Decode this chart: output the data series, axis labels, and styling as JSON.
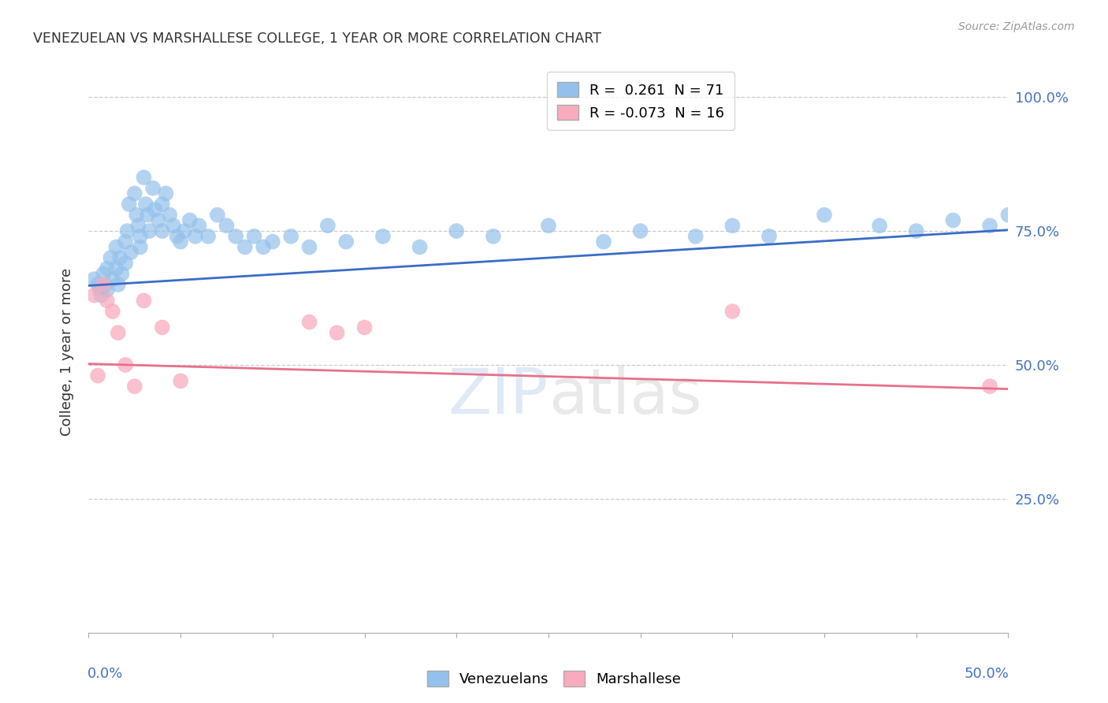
{
  "title": "VENEZUELAN VS MARSHALLESE COLLEGE, 1 YEAR OR MORE CORRELATION CHART",
  "source": "Source: ZipAtlas.com",
  "ylabel": "College, 1 year or more",
  "xlim": [
    0.0,
    0.5
  ],
  "ylim": [
    0.0,
    1.05
  ],
  "blue_color": "#94C1EC",
  "pink_color": "#F9ABBE",
  "blue_line_color": "#3B6CC5",
  "pink_line_color": "#E8708A",
  "grid_color": "#cccccc",
  "right_tick_color": "#4472C4",
  "venezuelan_x": [
    0.003,
    0.005,
    0.006,
    0.007,
    0.008,
    0.009,
    0.01,
    0.01,
    0.012,
    0.013,
    0.015,
    0.015,
    0.016,
    0.017,
    0.018,
    0.02,
    0.02,
    0.021,
    0.022,
    0.023,
    0.025,
    0.026,
    0.027,
    0.028,
    0.028,
    0.03,
    0.031,
    0.032,
    0.033,
    0.035,
    0.036,
    0.038,
    0.04,
    0.04,
    0.042,
    0.044,
    0.046,
    0.048,
    0.05,
    0.052,
    0.055,
    0.058,
    0.06,
    0.065,
    0.07,
    0.075,
    0.08,
    0.085,
    0.09,
    0.095,
    0.1,
    0.11,
    0.12,
    0.13,
    0.14,
    0.16,
    0.18,
    0.2,
    0.22,
    0.25,
    0.28,
    0.3,
    0.33,
    0.35,
    0.37,
    0.4,
    0.43,
    0.45,
    0.47,
    0.49,
    0.5
  ],
  "venezuelan_y": [
    0.66,
    0.65,
    0.64,
    0.63,
    0.67,
    0.65,
    0.68,
    0.64,
    0.7,
    0.66,
    0.72,
    0.68,
    0.65,
    0.7,
    0.67,
    0.73,
    0.69,
    0.75,
    0.8,
    0.71,
    0.82,
    0.78,
    0.76,
    0.74,
    0.72,
    0.85,
    0.8,
    0.78,
    0.75,
    0.83,
    0.79,
    0.77,
    0.8,
    0.75,
    0.82,
    0.78,
    0.76,
    0.74,
    0.73,
    0.75,
    0.77,
    0.74,
    0.76,
    0.74,
    0.78,
    0.76,
    0.74,
    0.72,
    0.74,
    0.72,
    0.73,
    0.74,
    0.72,
    0.76,
    0.73,
    0.74,
    0.72,
    0.75,
    0.74,
    0.76,
    0.73,
    0.75,
    0.74,
    0.76,
    0.74,
    0.78,
    0.76,
    0.75,
    0.77,
    0.76,
    0.78
  ],
  "marshallese_x": [
    0.003,
    0.005,
    0.008,
    0.01,
    0.013,
    0.016,
    0.02,
    0.025,
    0.03,
    0.04,
    0.05,
    0.12,
    0.135,
    0.15,
    0.35,
    0.49
  ],
  "marshallese_y": [
    0.63,
    0.48,
    0.65,
    0.62,
    0.6,
    0.56,
    0.5,
    0.46,
    0.62,
    0.57,
    0.47,
    0.58,
    0.56,
    0.57,
    0.6,
    0.46
  ],
  "blue_line_x0": 0.0,
  "blue_line_y0": 0.648,
  "blue_line_x1": 0.5,
  "blue_line_y1": 0.752,
  "pink_line_x0": 0.0,
  "pink_line_y0": 0.502,
  "pink_line_x1": 0.5,
  "pink_line_y1": 0.455
}
